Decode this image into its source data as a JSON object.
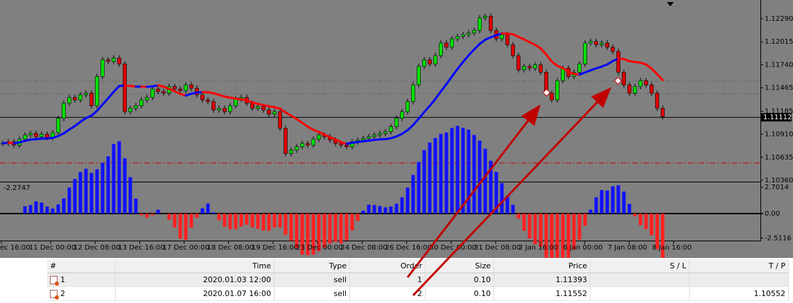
{
  "chart_data": {
    "type": "candlestick",
    "closes": [
      1.108,
      1.1082,
      1.1078,
      1.1085,
      1.109,
      1.1092,
      1.1088,
      1.1091,
      1.1087,
      1.1093,
      1.111,
      1.1128,
      1.1135,
      1.1132,
      1.1138,
      1.114,
      1.1125,
      1.116,
      1.118,
      1.1178,
      1.1182,
      1.1175,
      1.1118,
      1.1122,
      1.1125,
      1.1132,
      1.1135,
      1.1145,
      1.1142,
      1.114,
      1.1148,
      1.1145,
      1.1143,
      1.115,
      1.1146,
      1.1138,
      1.1132,
      1.113,
      1.112,
      1.1122,
      1.1118,
      1.1125,
      1.1133,
      1.1135,
      1.1128,
      1.1122,
      1.1124,
      1.112,
      1.1115,
      1.1118,
      1.1098,
      1.1068,
      1.1072,
      1.1076,
      1.108,
      1.1078,
      1.1085,
      1.109,
      1.1088,
      1.1084,
      1.108,
      1.1078,
      1.1076,
      1.1082,
      1.1084,
      1.1086,
      1.1088,
      1.109,
      1.1092,
      1.1094,
      1.11,
      1.111,
      1.1118,
      1.113,
      1.115,
      1.1172,
      1.118,
      1.1175,
      1.1185,
      1.12,
      1.1195,
      1.1205,
      1.1208,
      1.121,
      1.1212,
      1.1215,
      1.123,
      1.1232,
      1.1215,
      1.1205,
      1.121,
      1.1198,
      1.1185,
      1.1168,
      1.1172,
      1.117,
      1.1174,
      1.1165,
      1.114,
      1.1132,
      1.1155,
      1.117,
      1.116,
      1.1165,
      1.1175,
      1.12,
      1.1202,
      1.1198,
      1.12,
      1.1195,
      1.119,
      1.1165,
      1.115,
      1.114,
      1.1148,
      1.1155,
      1.115,
      1.114,
      1.1122,
      1.1112
    ],
    "ylim": [
      1.10343,
      1.12514
    ],
    "yticks": [
      {
        "value": 1.1229,
        "label": "1.12290"
      },
      {
        "value": 1.12015,
        "label": "1.12015"
      },
      {
        "value": 1.1174,
        "label": "1.11740"
      },
      {
        "value": 1.11465,
        "label": "1.11465"
      },
      {
        "value": 1.11185,
        "label": "1.11185"
      },
      {
        "value": 1.1091,
        "label": "1.10910"
      },
      {
        "value": 1.10635,
        "label": "1.10635"
      },
      {
        "value": 1.1036,
        "label": "1.10360"
      }
    ],
    "current_price": {
      "value": 1.11112,
      "label": "1.11112"
    },
    "up_color": "#00e000",
    "down_color": "#e00000",
    "indicator": {
      "label": "-2.2747",
      "ylim": [
        -2.77,
        3.2
      ],
      "yticks": [
        2.7014,
        {
          "value": 0,
          "label": "0.00"
        },
        -2.5116
      ],
      "up_color": "#1010ff",
      "down_color": "#ff2020"
    },
    "time_labels": [
      "ec 16:00",
      "11 Dec 00:00",
      "12 Dec 08:00",
      "13 Dec 16:00",
      "17 Dec 00:00",
      "18 Dec 08:00",
      "19 Dec 16:00",
      "23 Dec 00:00",
      "24 Dec 08:00",
      "26 Dec 16:00",
      "30 Dec 00:00",
      "31 Dec 08:00",
      "2 Jan 16:00",
      "6 Jan 00:00",
      "7 Jan 08:00",
      "8 Jan 16:00"
    ]
  },
  "table": {
    "columns": [
      "#",
      "Time",
      "Type",
      "Order",
      "Size",
      "Price",
      "S / L",
      "T / P"
    ],
    "rows": [
      [
        "1",
        "2020.01.03 12:00",
        "sell",
        "1",
        "0.10",
        "1.11393",
        "",
        ""
      ],
      [
        "2",
        "2020.01.07 16:00",
        "sell",
        "2",
        "0.10",
        "1.11552",
        "",
        "1.10552"
      ]
    ]
  }
}
